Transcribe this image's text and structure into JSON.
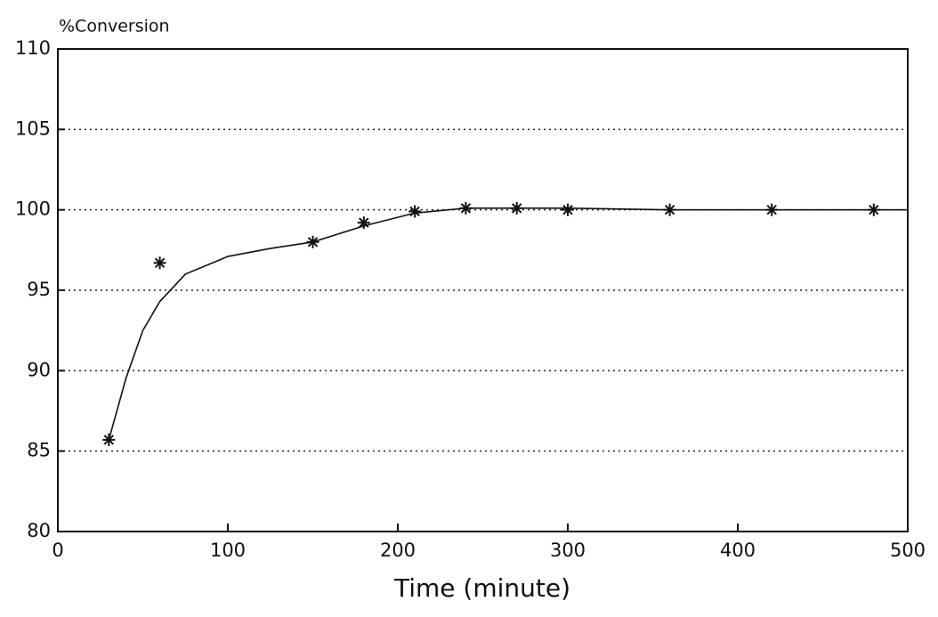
{
  "chart_data": {
    "type": "scatter",
    "y_label": "%Conversion",
    "x_label": "Time (minute)",
    "xlim": [
      0,
      500
    ],
    "xticks": [
      0,
      100,
      200,
      300,
      400,
      500
    ],
    "ylim": [
      80,
      110
    ],
    "yticks": [
      80,
      85,
      90,
      95,
      100,
      105,
      110
    ],
    "grid": true,
    "series": [
      {
        "type": "scatter",
        "color": "#111111",
        "x": [
          30,
          60,
          150,
          180,
          210,
          240,
          270,
          300,
          360,
          420,
          480
        ],
        "values": [
          85.7,
          96.7,
          98.0,
          99.2,
          99.9,
          100.1,
          100.1,
          100.0,
          100.0,
          100.0,
          100.0
        ]
      },
      {
        "type": "line",
        "color": "#111111",
        "x": [
          30,
          40,
          50,
          60,
          75,
          100,
          125,
          150,
          180,
          210,
          240,
          300,
          360,
          420,
          500
        ],
        "values": [
          85.7,
          89.5,
          92.5,
          94.3,
          96.0,
          97.1,
          97.6,
          98.0,
          99.0,
          99.8,
          100.1,
          100.1,
          100.0,
          100.0,
          100.0
        ]
      }
    ]
  }
}
